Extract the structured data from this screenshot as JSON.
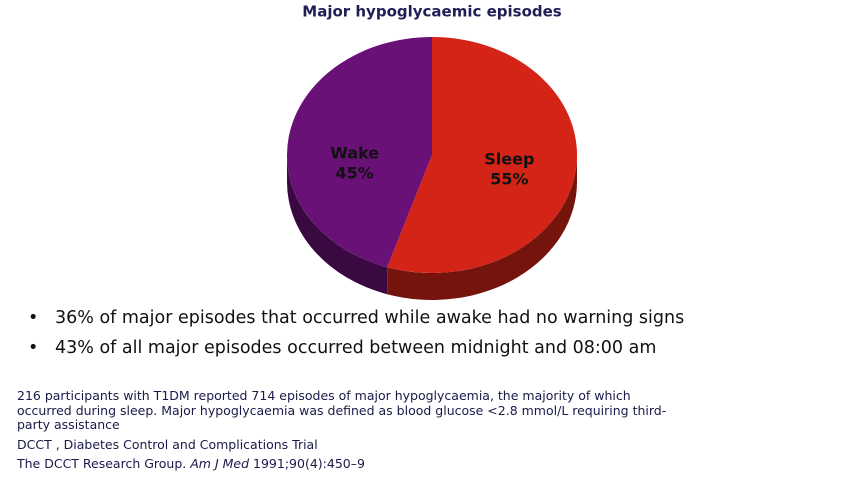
{
  "chart_data": {
    "type": "pie",
    "title": "Major hypoglycaemic episodes",
    "categories": [
      "Sleep",
      "Wake"
    ],
    "values": [
      55,
      45
    ],
    "value_labels": [
      "55%",
      "45%"
    ],
    "colors": [
      "#d42418",
      "#6a1177"
    ]
  },
  "bullets": [
    "36% of major episodes that occurred while awake had no warning signs",
    "43% of all major episodes occurred between midnight and 08:00 am"
  ],
  "footnotes": [
    "216 participants with T1DM reported 714 episodes of major hypoglycaemia, the majority of which occurred during sleep. Major hypoglycaemia was defined as blood glucose <2.8 mmol/L requiring third-party assistance",
    "DCCT , Diabetes Control and Complications Trial"
  ],
  "reference": {
    "authors": "The DCCT Research Group.",
    "journal": "Am J Med",
    "citation": "1991;90(4):450–9"
  }
}
